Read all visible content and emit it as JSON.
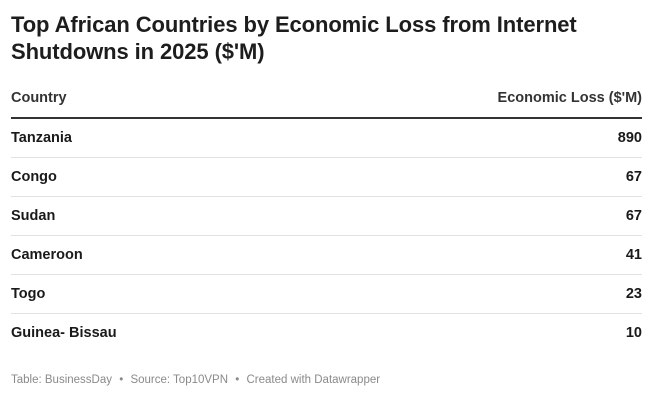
{
  "chart_data": {
    "type": "table",
    "title": "Top African Countries by Economic Loss from Internet Shutdowns in 2025 ($'M)",
    "columns": [
      "Country",
      "Economic Loss ($'M)"
    ],
    "rows": [
      {
        "country": "Tanzania",
        "value": "890"
      },
      {
        "country": "Congo",
        "value": "67"
      },
      {
        "country": "Sudan",
        "value": "67"
      },
      {
        "country": "Cameroon",
        "value": "41"
      },
      {
        "country": "Togo",
        "value": "23"
      },
      {
        "country": "Guinea- Bissau",
        "value": "10"
      }
    ]
  },
  "footer": {
    "table_credit": "Table: BusinessDay",
    "separator": "•",
    "source": "Source: Top10VPN",
    "created_with": "Created with Datawrapper"
  },
  "colors": {
    "text": "#1a1a1a",
    "rule": "#333333",
    "row_divider": "#e2e2e2",
    "footer_text": "#8a8a8a"
  }
}
